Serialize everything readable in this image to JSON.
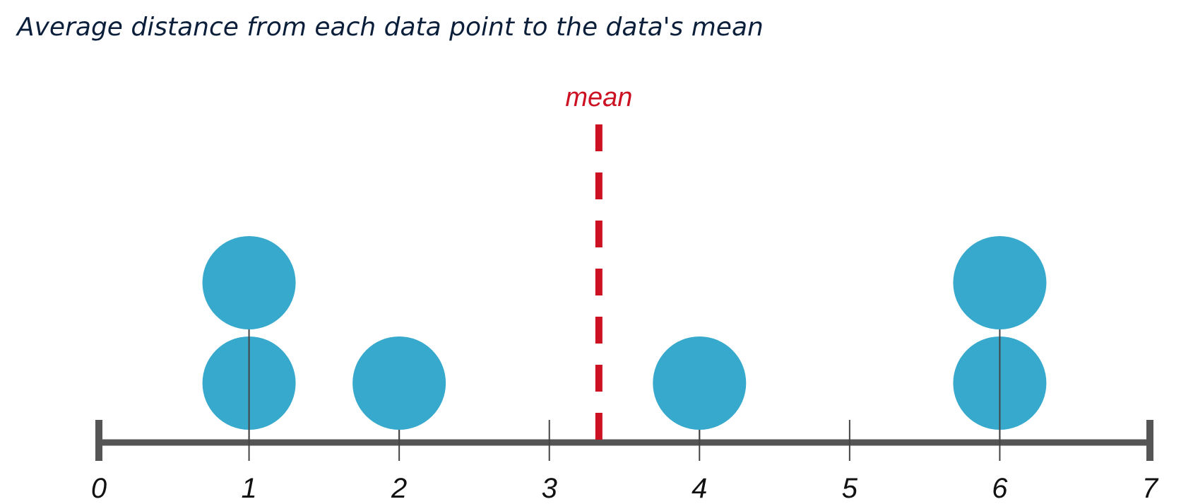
{
  "caption": "Average distance from each data point to the data's mean",
  "chart_data": {
    "type": "dot plot",
    "points": [
      1,
      1,
      2,
      4,
      6,
      6
    ],
    "xlim": [
      0,
      7
    ],
    "ticks": [
      0,
      1,
      2,
      3,
      4,
      5,
      6,
      7
    ],
    "tick_labels": [
      "0",
      "1",
      "2",
      "3",
      "4",
      "5",
      "6",
      "7"
    ],
    "mean": 3.33,
    "mean_label": "mean",
    "colors": {
      "dot": "#36a9cc",
      "mean_line": "#cc1122",
      "axis": "#555555"
    }
  }
}
